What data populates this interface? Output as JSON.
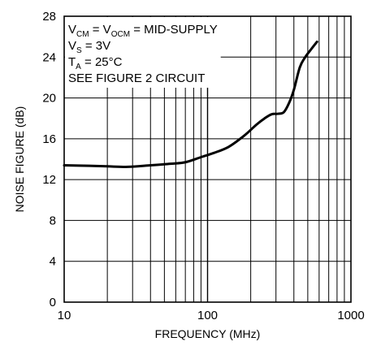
{
  "chart_data": {
    "type": "line",
    "xscale": "log",
    "xlabel": "FREQUENCY (MHz)",
    "ylabel": "NOISE FIGURE (dB)",
    "xlim": [
      10,
      1000
    ],
    "ylim": [
      0,
      28
    ],
    "xticks": [
      10,
      100,
      1000
    ],
    "yticks": [
      0,
      4,
      8,
      12,
      16,
      20,
      24,
      28
    ],
    "xtick_labels": [
      "10",
      "100",
      "1000"
    ],
    "ytick_labels": [
      "0",
      "4",
      "8",
      "12",
      "16",
      "20",
      "24",
      "28"
    ],
    "grid": true,
    "line_color": "#000000",
    "annotations": [
      {
        "parts": [
          {
            "t": "V"
          },
          {
            "t": "CM",
            "sub": true
          },
          {
            "t": " = V"
          },
          {
            "t": "OCM",
            "sub": true
          },
          {
            "t": " = MID-SUPPLY"
          }
        ]
      },
      {
        "parts": [
          {
            "t": "V"
          },
          {
            "t": "S",
            "sub": true
          },
          {
            "t": " = 3V"
          }
        ]
      },
      {
        "parts": [
          {
            "t": "T"
          },
          {
            "t": "A",
            "sub": true
          },
          {
            "t": " = 25°C"
          }
        ]
      },
      {
        "parts": [
          {
            "t": "SEE FIGURE 2 CIRCUIT"
          }
        ]
      }
    ],
    "series": [
      {
        "x": [
          10,
          15,
          20,
          28,
          40,
          55,
          70,
          90,
          110,
          140,
          180,
          220,
          250,
          280,
          310,
          340,
          370,
          400,
          440,
          480,
          530,
          580
        ],
        "y": [
          13.4,
          13.35,
          13.3,
          13.25,
          13.4,
          13.55,
          13.7,
          14.2,
          14.6,
          15.2,
          16.3,
          17.4,
          18.0,
          18.4,
          18.45,
          18.6,
          19.5,
          20.8,
          23.0,
          24.0,
          24.8,
          25.5
        ]
      }
    ]
  }
}
